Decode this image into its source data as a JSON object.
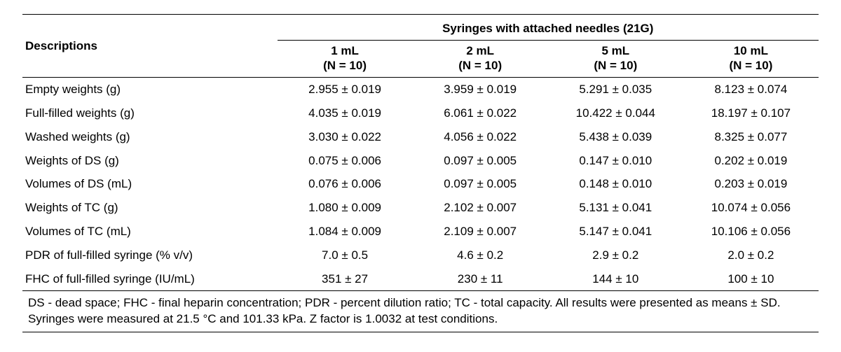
{
  "table": {
    "group_header": "Syringes with attached needles (21G)",
    "desc_header": "Descriptions",
    "columns": [
      {
        "size": "1 mL",
        "n": "(N = 10)"
      },
      {
        "size": "2 mL",
        "n": "(N = 10)"
      },
      {
        "size": "5 mL",
        "n": "(N = 10)"
      },
      {
        "size": "10 mL",
        "n": "(N = 10)"
      }
    ],
    "rows": [
      {
        "desc": "Empty weights (g)",
        "v": [
          "2.955 ± 0.019",
          "3.959 ± 0.019",
          "5.291 ± 0.035",
          "8.123 ± 0.074"
        ]
      },
      {
        "desc": "Full-filled weights (g)",
        "v": [
          "4.035 ± 0.019",
          "6.061 ± 0.022",
          "10.422 ± 0.044",
          "18.197 ± 0.107"
        ]
      },
      {
        "desc": "Washed weights (g)",
        "v": [
          "3.030 ± 0.022",
          "4.056 ± 0.022",
          "5.438 ± 0.039",
          "8.325 ± 0.077"
        ]
      },
      {
        "desc": "Weights of DS (g)",
        "v": [
          "0.075 ± 0.006",
          "0.097 ± 0.005",
          "0.147 ± 0.010",
          "0.202 ± 0.019"
        ]
      },
      {
        "desc": "Volumes of DS (mL)",
        "v": [
          "0.076 ± 0.006",
          "0.097 ± 0.005",
          "0.148 ± 0.010",
          "0.203 ± 0.019"
        ]
      },
      {
        "desc": "Weights of TC (g)",
        "v": [
          "1.080 ± 0.009",
          "2.102 ± 0.007",
          "5.131 ± 0.041",
          "10.074 ± 0.056"
        ]
      },
      {
        "desc": "Volumes of TC (mL)",
        "v": [
          "1.084 ± 0.009",
          "2.109 ± 0.007",
          "5.147 ± 0.041",
          "10.106 ± 0.056"
        ]
      },
      {
        "desc": "PDR of full-filled syringe (% v/v)",
        "v": [
          "7.0 ± 0.5",
          "4.6 ± 0.2",
          "2.9 ± 0.2",
          "2.0 ± 0.2"
        ]
      },
      {
        "desc": "FHC of full-filled syringe (IU/mL)",
        "v": [
          "351 ± 27",
          "230 ± 11",
          "144 ± 10",
          "100 ± 10"
        ]
      }
    ],
    "footnote": "DS - dead space; FHC - final heparin concentration; PDR - percent dilution ratio; TC - total capacity. All results were presented as means ± SD. Syringes were measured at 21.5 °C and 101.33 kPa. Z factor is 1.0032 at test conditions.",
    "col_widths_pct": [
      32,
      17,
      17,
      17,
      17
    ]
  }
}
